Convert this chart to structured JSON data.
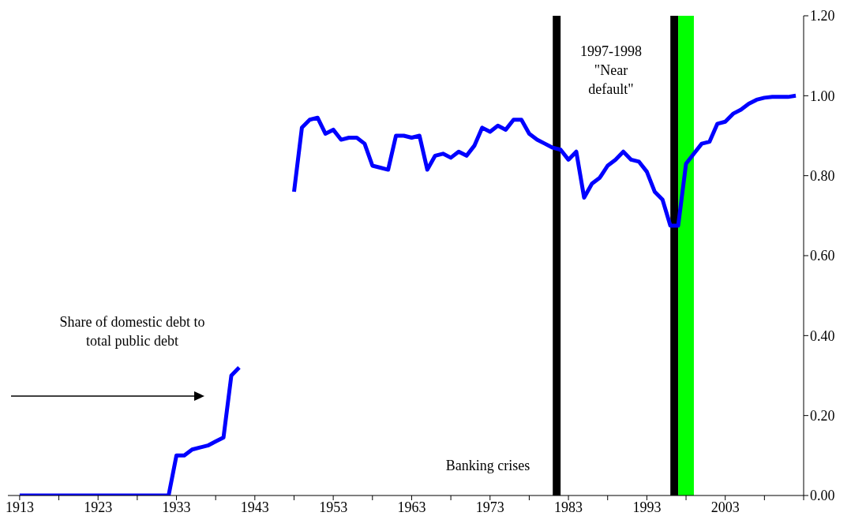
{
  "chart_data": {
    "type": "line",
    "x": [
      1913,
      1914,
      1915,
      1916,
      1917,
      1918,
      1919,
      1920,
      1921,
      1922,
      1923,
      1924,
      1925,
      1926,
      1927,
      1928,
      1929,
      1930,
      1931,
      1932,
      1933,
      1934,
      1935,
      1936,
      1937,
      1938,
      1939,
      1940,
      1941,
      1942,
      1943,
      1944,
      1945,
      1946,
      1947,
      1948,
      1949,
      1950,
      1951,
      1952,
      1953,
      1954,
      1955,
      1956,
      1957,
      1958,
      1959,
      1960,
      1961,
      1962,
      1963,
      1964,
      1965,
      1966,
      1967,
      1968,
      1969,
      1970,
      1971,
      1972,
      1973,
      1974,
      1975,
      1976,
      1977,
      1978,
      1979,
      1980,
      1981,
      1982,
      1983,
      1984,
      1985,
      1986,
      1987,
      1988,
      1989,
      1990,
      1991,
      1992,
      1993,
      1994,
      1995,
      1996,
      1997,
      1998,
      1999,
      2000,
      2001,
      2002,
      2003,
      2004,
      2005,
      2006,
      2007,
      2008,
      2009,
      2010,
      2011,
      2012
    ],
    "series": [
      {
        "color": "#0000ff",
        "values": [
          0,
          0,
          0,
          0,
          0,
          0,
          0,
          0,
          0,
          0,
          0,
          0,
          0,
          0,
          0,
          0,
          0,
          0,
          0,
          0,
          0.1,
          0.1,
          0.115,
          0.12,
          0.125,
          0.135,
          0.145,
          0.3,
          0.32,
          null,
          null,
          null,
          null,
          null,
          null,
          0.76,
          0.92,
          0.94,
          0.945,
          0.905,
          0.915,
          0.89,
          0.895,
          0.895,
          0.88,
          0.825,
          0.82,
          0.815,
          0.9,
          0.9,
          0.895,
          0.9,
          0.815,
          0.85,
          0.855,
          0.845,
          0.86,
          0.85,
          0.875,
          0.92,
          0.91,
          0.925,
          0.915,
          0.94,
          0.94,
          0.905,
          0.89,
          0.88,
          0.87,
          0.865,
          0.84,
          0.86,
          0.745,
          0.78,
          0.795,
          0.825,
          0.84,
          0.86,
          0.84,
          0.835,
          0.81,
          0.76,
          0.74,
          0.675,
          0.675,
          0.83,
          0.855,
          0.88,
          0.885,
          0.93,
          0.935,
          0.955,
          0.965,
          0.98,
          0.99,
          0.995,
          0.997,
          0.997,
          0.997,
          1.0
        ]
      }
    ],
    "xlim": [
      1911.5,
      2013
    ],
    "xticks": [
      1913,
      {
        "value": 1918,
        "label": null
      },
      1923,
      {
        "value": 1928,
        "label": null
      },
      1933,
      {
        "value": 1938,
        "label": null
      },
      1943,
      {
        "value": 1948,
        "label": null
      },
      1953,
      {
        "value": 1958,
        "label": null
      },
      1963,
      {
        "value": 1968,
        "label": null
      },
      1973,
      {
        "value": 1978,
        "label": null
      },
      1983,
      {
        "value": 1988,
        "label": null
      },
      1993,
      {
        "value": 1998,
        "label": null
      },
      2003,
      {
        "value": 2008,
        "label": null
      },
      {
        "value": 2013,
        "label": null
      }
    ],
    "ylim": [
      0,
      1.2
    ],
    "yticks": [
      {
        "value": 0,
        "label": "0.00"
      },
      {
        "value": 0.2,
        "label": "0.20"
      },
      {
        "value": 0.4,
        "label": "0.40"
      },
      {
        "value": 0.6,
        "label": "0.60"
      },
      {
        "value": 0.8,
        "label": "0.80"
      },
      {
        "value": 1,
        "label": "1.00"
      },
      {
        "value": 1.2,
        "label": "1.20"
      }
    ],
    "bands": [
      {
        "axis": "x",
        "from": 1981,
        "to": 1982,
        "color": "#000000"
      },
      {
        "axis": "x",
        "from": 1996,
        "to": 1997,
        "color": "#000000"
      },
      {
        "axis": "x",
        "from": 1997,
        "to": 1999,
        "color": "#00ff00"
      }
    ],
    "annotations": [
      "Share of domestic debt to total public debt",
      "Banking crises",
      "1997-1998 \"Near default\""
    ],
    "grid": false,
    "legend": false,
    "marker": "none",
    "line_style": "solid"
  }
}
